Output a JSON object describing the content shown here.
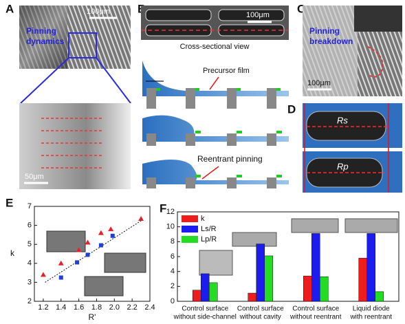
{
  "panels": {
    "a": {
      "label": "A",
      "title": [
        "Pinning",
        "dynamics"
      ],
      "scale_top": "100μm",
      "scale_bottom": "50μm"
    },
    "b": {
      "label": "B",
      "scale": "100μm",
      "caption": "Cross-sectional view",
      "precursor": "Precursor film",
      "reentrant": "Reentrant  pinning"
    },
    "c": {
      "label": "C",
      "title": [
        "Pinning",
        "breakdown"
      ],
      "scale": "100μm"
    },
    "d": {
      "label": "D",
      "rs": "Rs",
      "rp": "Rp"
    }
  },
  "chart_data": [
    {
      "label": "E",
      "type": "scatter",
      "x_label": "R'",
      "y_label": "k",
      "xlim": [
        1.1,
        2.4
      ],
      "ylim": [
        2,
        7
      ],
      "xticks": [
        1.2,
        1.4,
        1.6,
        1.8,
        {
          "value": 2,
          "label": "2.0"
        },
        2.2,
        2.4
      ],
      "yticks": [
        2,
        3,
        4,
        5,
        6,
        7
      ],
      "series": [
        {
          "color": "#e8202a",
          "marker": "triangle",
          "x": [
            1.2,
            1.4,
            1.6,
            1.7,
            1.85,
            1.96,
            2.3
          ],
          "values": [
            3.4,
            4.0,
            4.7,
            5.1,
            5.6,
            5.8,
            6.35
          ]
        },
        {
          "color": "#1f3fd6",
          "marker": "square",
          "x": [
            1.4,
            1.58,
            1.7,
            1.85,
            1.98
          ],
          "values": [
            3.25,
            4.05,
            4.45,
            4.95,
            5.45
          ]
        }
      ],
      "trend_line": {
        "x": [
          1.22,
          2.32
        ],
        "values": [
          3.0,
          6.3
        ]
      }
    },
    {
      "label": "F",
      "type": "bar",
      "legend": "upper left",
      "categories": [
        [
          "Control surface",
          "without side-channel"
        ],
        [
          "Control surface",
          "without cavity"
        ],
        [
          "Control surface",
          "without reentrant"
        ],
        [
          "Liquid diode",
          "with reentrant"
        ]
      ],
      "ylim": [
        0,
        12
      ],
      "yticks": [
        0,
        2,
        4,
        6,
        8,
        10,
        12
      ],
      "series": [
        {
          "name": "k",
          "color": "#ee1c1c",
          "values": [
            1.5,
            1.1,
            3.4,
            5.8
          ]
        },
        {
          "name": "Ls/R",
          "color": "#1c1cee",
          "values": [
            3.7,
            7.7,
            9.1,
            9.1
          ]
        },
        {
          "name": "Lp/R",
          "color": "#22dd22",
          "values": [
            2.5,
            6.1,
            3.3,
            1.3
          ]
        }
      ]
    }
  ]
}
